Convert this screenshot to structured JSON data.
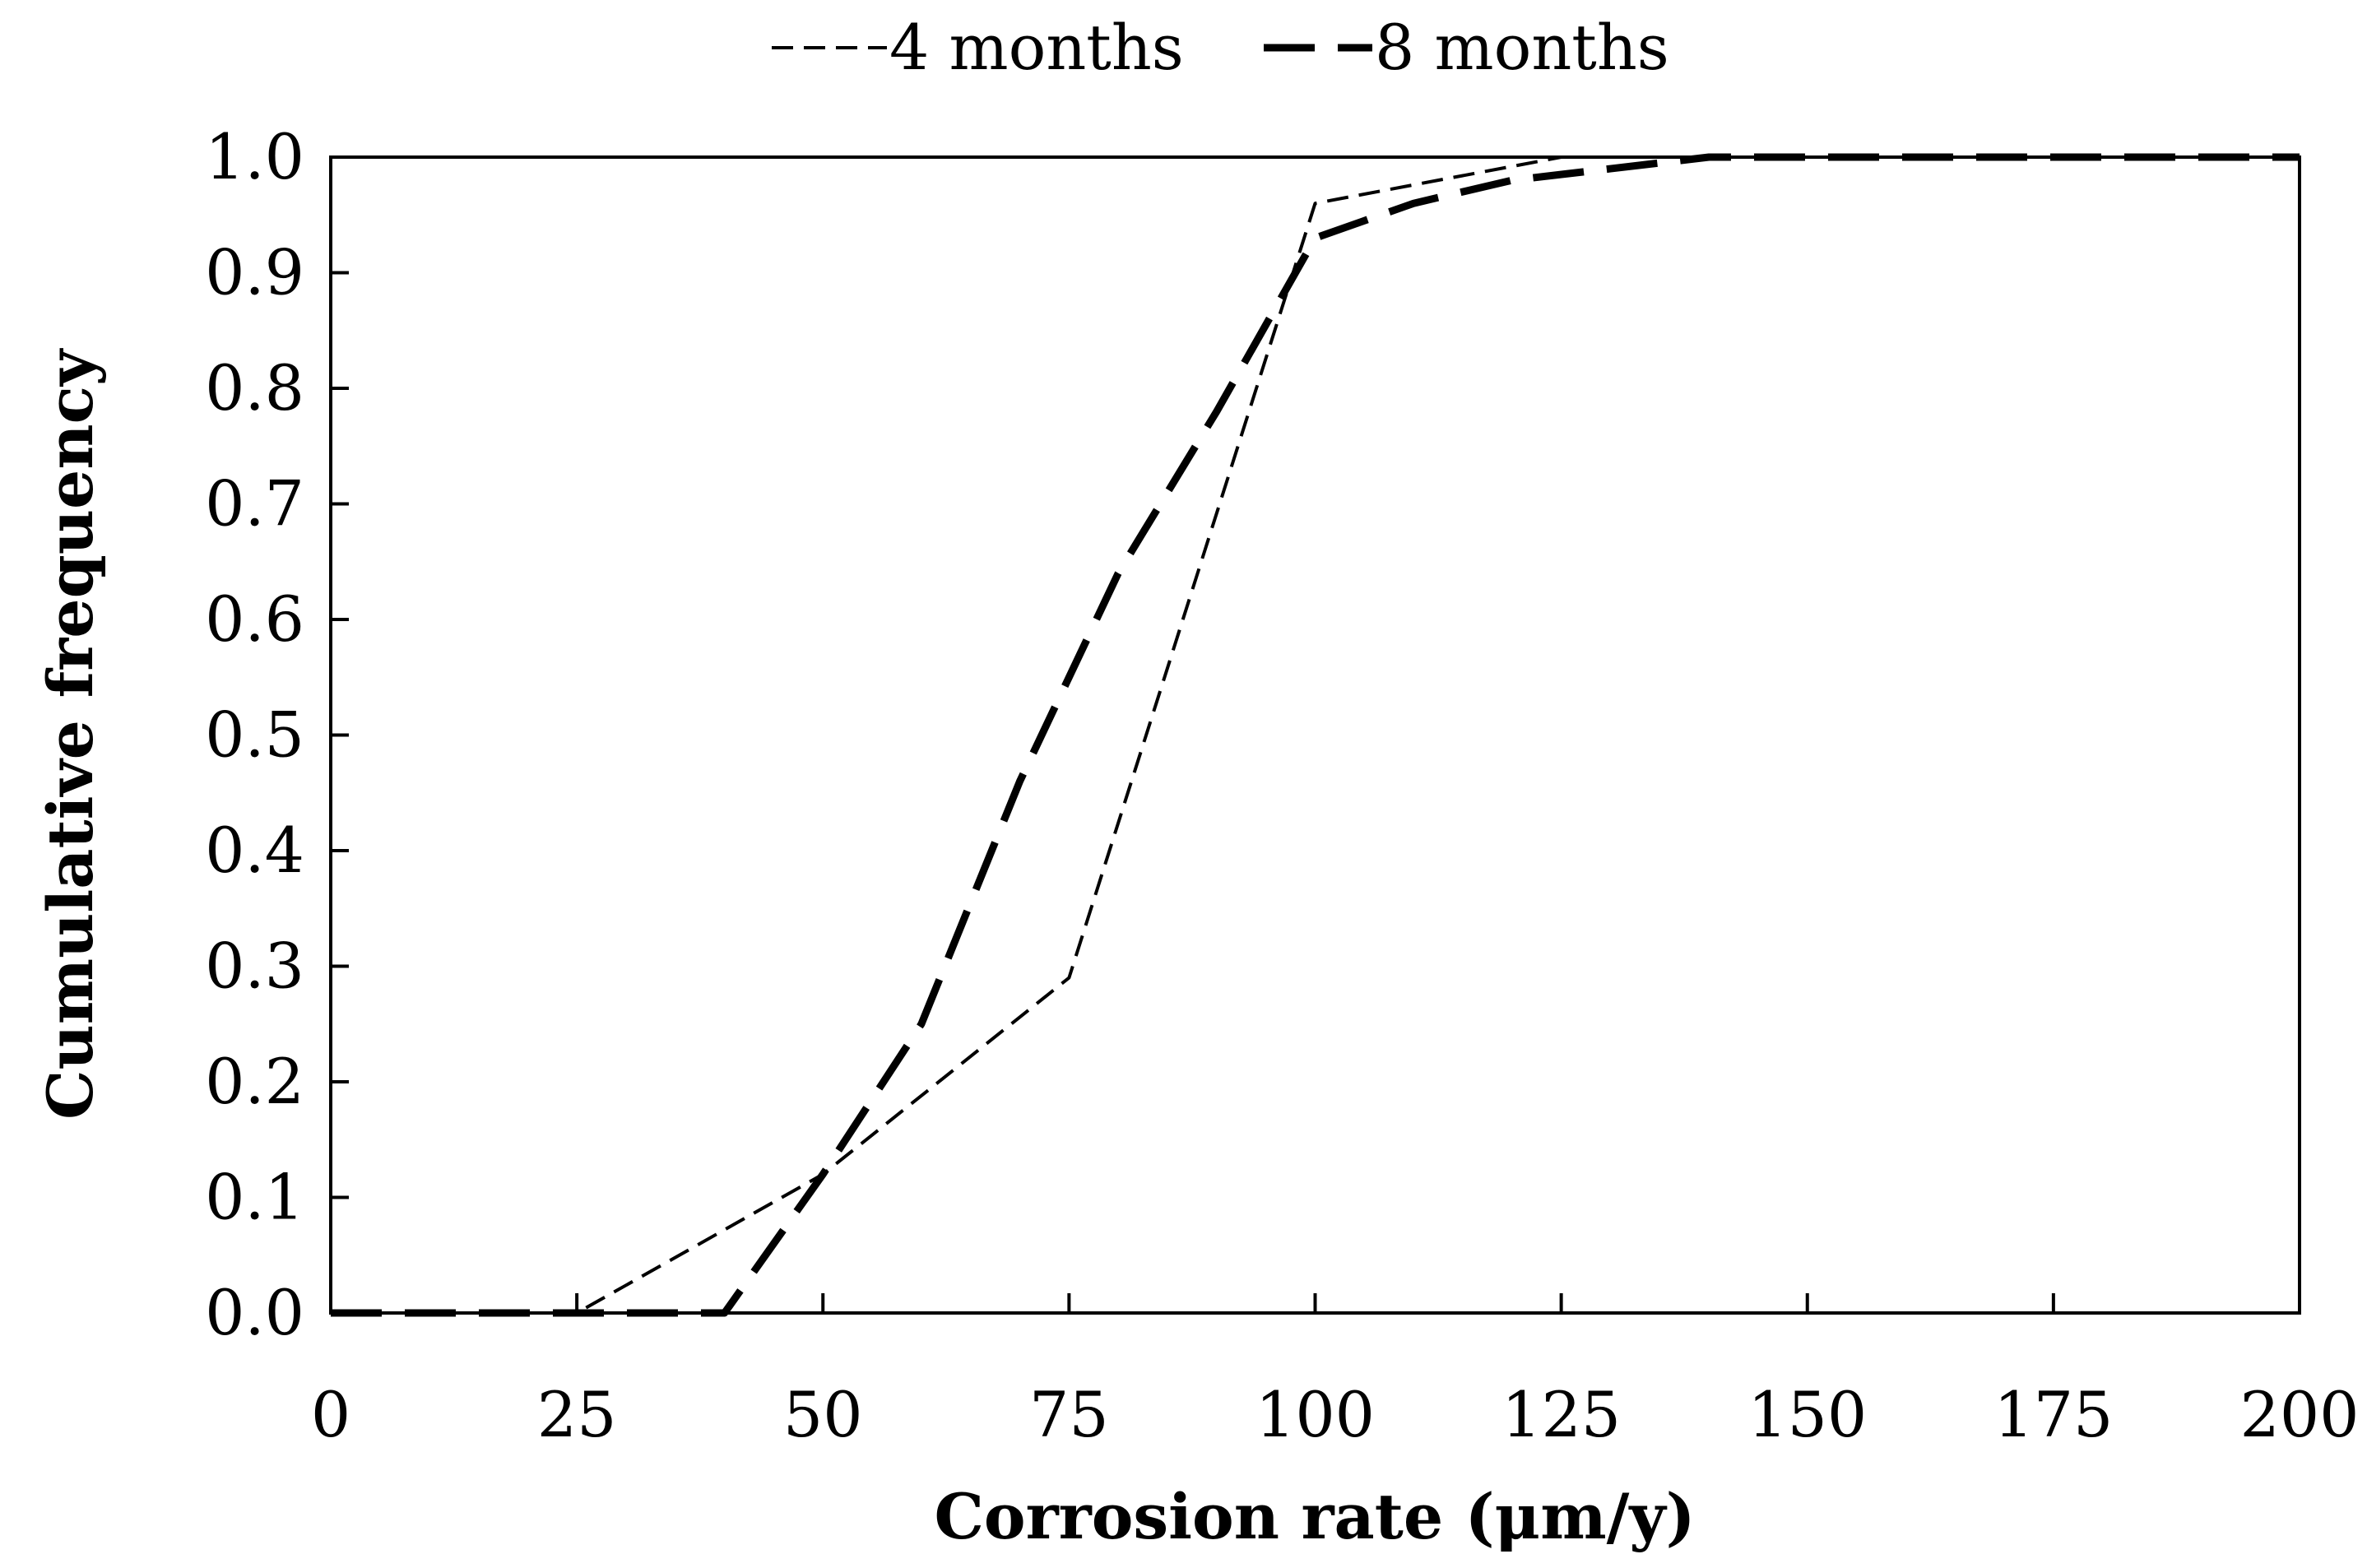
{
  "chart_data": {
    "type": "line",
    "title": "",
    "xlabel": "Corrosion rate (μm/y)",
    "ylabel": "Cumulative frequency",
    "xlim": [
      0,
      200
    ],
    "ylim": [
      0,
      1.0
    ],
    "x_ticks": [
      0,
      25,
      50,
      75,
      100,
      125,
      150,
      175,
      200
    ],
    "x_tick_labels": [
      "0",
      "25",
      "50",
      "75",
      "100",
      "125",
      "150",
      "175",
      "200"
    ],
    "y_ticks": [
      0,
      0.1,
      0.2,
      0.3,
      0.4,
      0.5,
      0.6,
      0.7,
      0.8,
      0.9,
      1.0
    ],
    "y_tick_labels": [
      "0.0",
      "0.1",
      "0.2",
      "0.3",
      "0.4",
      "0.5",
      "0.6",
      "0.7",
      "0.8",
      "0.9",
      "1.0"
    ],
    "grid": false,
    "legend_position": "top",
    "series": [
      {
        "name": "4 months",
        "legend_label": "4 months",
        "style": "short-dash-thin",
        "color": "#000000",
        "x": [
          0,
          25,
          50,
          75,
          100,
          125,
          150,
          175,
          200
        ],
        "y": [
          0.0,
          0.0,
          0.12,
          0.29,
          0.96,
          1.0,
          1.0,
          1.0,
          1.0
        ]
      },
      {
        "name": "8 months",
        "legend_label": "8 months",
        "style": "long-dash-thick",
        "color": "#000000",
        "x": [
          0,
          40,
          50,
          60,
          70,
          80,
          90,
          100,
          110,
          120,
          130,
          140,
          150,
          200
        ],
        "y": [
          0.0,
          0.0,
          0.12,
          0.25,
          0.46,
          0.64,
          0.78,
          0.93,
          0.96,
          0.98,
          0.99,
          1.0,
          1.0,
          1.0
        ]
      }
    ]
  }
}
